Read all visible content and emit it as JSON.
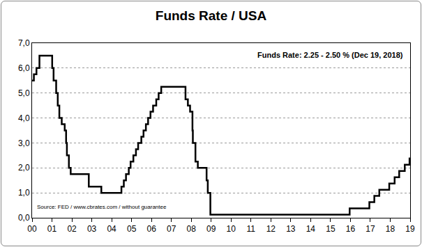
{
  "chart_data": {
    "type": "line",
    "title": "Funds Rate / USA",
    "annotations": [
      "Funds Rate: 2.25 - 2.50 % (Dec 19, 2018)",
      "Source: FED / www.cbrates.com / without guarantee"
    ],
    "x": [
      2000.0,
      2000.09,
      2000.22,
      2000.37,
      2001.01,
      2001.08,
      2001.21,
      2001.29,
      2001.37,
      2001.49,
      2001.64,
      2001.71,
      2001.75,
      2001.85,
      2001.94,
      2002.85,
      2003.48,
      2004.49,
      2004.61,
      2004.72,
      2004.86,
      2004.95,
      2005.09,
      2005.22,
      2005.33,
      2005.49,
      2005.6,
      2005.72,
      2005.83,
      2005.95,
      2006.08,
      2006.24,
      2006.36,
      2006.49,
      2007.71,
      2007.83,
      2007.94,
      2008.06,
      2008.08,
      2008.21,
      2008.33,
      2008.77,
      2008.83,
      2008.96,
      2015.96,
      2016.95,
      2017.2,
      2017.45,
      2017.95,
      2018.22,
      2018.45,
      2018.73,
      2018.97,
      2019.0
    ],
    "values": [
      5.5,
      5.75,
      6.0,
      6.5,
      6.0,
      5.5,
      5.0,
      4.5,
      4.0,
      3.75,
      3.5,
      3.0,
      2.5,
      2.0,
      1.75,
      1.25,
      1.0,
      1.25,
      1.5,
      1.75,
      2.0,
      2.25,
      2.5,
      2.75,
      3.0,
      3.25,
      3.5,
      3.75,
      4.0,
      4.25,
      4.5,
      4.75,
      5.0,
      5.25,
      4.75,
      4.5,
      4.25,
      3.5,
      3.0,
      2.25,
      2.0,
      1.5,
      1.0,
      0.125,
      0.375,
      0.625,
      0.875,
      1.125,
      1.375,
      1.625,
      1.875,
      2.125,
      2.375,
      2.375
    ],
    "color": "#000000",
    "line_style": "step",
    "xlim": [
      2000,
      2019
    ],
    "xticks": [
      {
        "value": 2000,
        "label": "00"
      },
      {
        "value": 2001,
        "label": "01"
      },
      {
        "value": 2002,
        "label": "02"
      },
      {
        "value": 2003,
        "label": "03"
      },
      {
        "value": 2004,
        "label": "04"
      },
      {
        "value": 2005,
        "label": "05"
      },
      {
        "value": 2006,
        "label": "06"
      },
      {
        "value": 2007,
        "label": "07"
      },
      {
        "value": 2008,
        "label": "08"
      },
      {
        "value": 2009,
        "label": "09"
      },
      {
        "value": 2010,
        "label": "10"
      },
      {
        "value": 2011,
        "label": "11"
      },
      {
        "value": 2012,
        "label": "12"
      },
      {
        "value": 2013,
        "label": "13"
      },
      {
        "value": 2014,
        "label": "14"
      },
      {
        "value": 2015,
        "label": "15"
      },
      {
        "value": 2016,
        "label": "16"
      },
      {
        "value": 2017,
        "label": "17"
      },
      {
        "value": 2018,
        "label": "18"
      },
      {
        "value": 2019,
        "label": "19"
      }
    ],
    "ylim": [
      0,
      7
    ],
    "yticks": [
      {
        "value": 0,
        "label": "0,0"
      },
      {
        "value": 1,
        "label": "1,0"
      },
      {
        "value": 2,
        "label": "2,0"
      },
      {
        "value": 3,
        "label": "3,0"
      },
      {
        "value": 4,
        "label": "4,0"
      },
      {
        "value": 5,
        "label": "5,0"
      },
      {
        "value": 6,
        "label": "6,0"
      },
      {
        "value": 7,
        "label": "7,0"
      }
    ],
    "grid": true
  }
}
